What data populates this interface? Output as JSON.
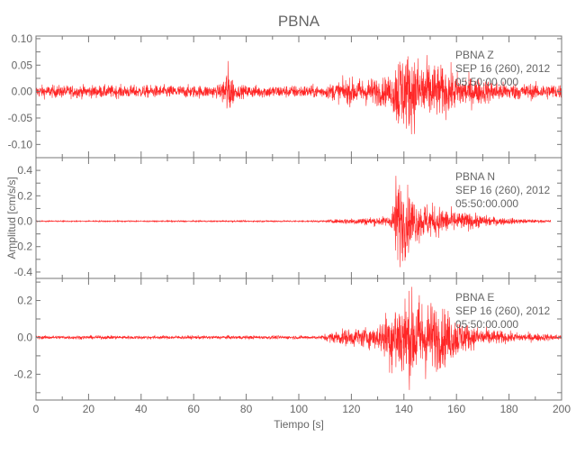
{
  "chart_data": {
    "type": "line",
    "title": "PBNA",
    "xlabel": "Tiempo [s]",
    "ylabel": "Amplitud [cm/s/s]",
    "xlim": [
      0,
      200
    ],
    "xticks": [
      0,
      20,
      40,
      60,
      80,
      100,
      120,
      140,
      160,
      180,
      200
    ],
    "grid": false,
    "trace_color": "#ff0000",
    "panels": [
      {
        "component": "Z",
        "label_line1": "PBNA   Z",
        "label_line2": "SEP 16 (260), 2012",
        "label_line3": "05:50:00.000",
        "ylim": [
          -0.125,
          0.105
        ],
        "yticks": [
          0.1,
          0.05,
          0.0,
          -0.05,
          -0.1
        ],
        "ytick_labels": [
          "0.10",
          "0.05",
          "0.00",
          "-0.05",
          "-0.10"
        ],
        "envelope": [
          [
            0,
            0.015
          ],
          [
            70,
            0.015
          ],
          [
            73,
            0.07
          ],
          [
            76,
            0.015
          ],
          [
            110,
            0.015
          ],
          [
            118,
            0.03
          ],
          [
            135,
            0.035
          ],
          [
            138,
            0.1
          ],
          [
            150,
            0.07
          ],
          [
            165,
            0.035
          ],
          [
            180,
            0.02
          ],
          [
            200,
            0.018
          ]
        ]
      },
      {
        "component": "N",
        "label_line1": "PBNA   N",
        "label_line2": "SEP 16 (260), 2012",
        "label_line3": "05:50:00.000",
        "ylim": [
          -0.45,
          0.5
        ],
        "yticks": [
          0.4,
          0.2,
          0.0,
          -0.2,
          -0.4
        ],
        "ytick_labels": [
          "0.4",
          "0.2",
          "0.0",
          "-0.2",
          "-0.4"
        ],
        "envelope": [
          [
            0,
            0.006
          ],
          [
            110,
            0.008
          ],
          [
            118,
            0.03
          ],
          [
            135,
            0.05
          ],
          [
            137,
            0.45
          ],
          [
            145,
            0.2
          ],
          [
            160,
            0.1
          ],
          [
            175,
            0.04
          ],
          [
            190,
            0.015
          ],
          [
            196,
            0.012
          ]
        ]
      },
      {
        "component": "E",
        "label_line1": "PBNA   E",
        "label_line2": "SEP 16 (260), 2012",
        "label_line3": "05:50:00.000",
        "ylim": [
          -0.34,
          0.32
        ],
        "yticks": [
          0.2,
          0.0,
          -0.2
        ],
        "ytick_labels": [
          "0.2",
          "0.0",
          "-0.2"
        ],
        "envelope": [
          [
            0,
            0.012
          ],
          [
            108,
            0.012
          ],
          [
            115,
            0.05
          ],
          [
            130,
            0.08
          ],
          [
            137,
            0.28
          ],
          [
            145,
            0.3
          ],
          [
            155,
            0.2
          ],
          [
            165,
            0.08
          ],
          [
            180,
            0.035
          ],
          [
            200,
            0.02
          ]
        ]
      }
    ]
  }
}
